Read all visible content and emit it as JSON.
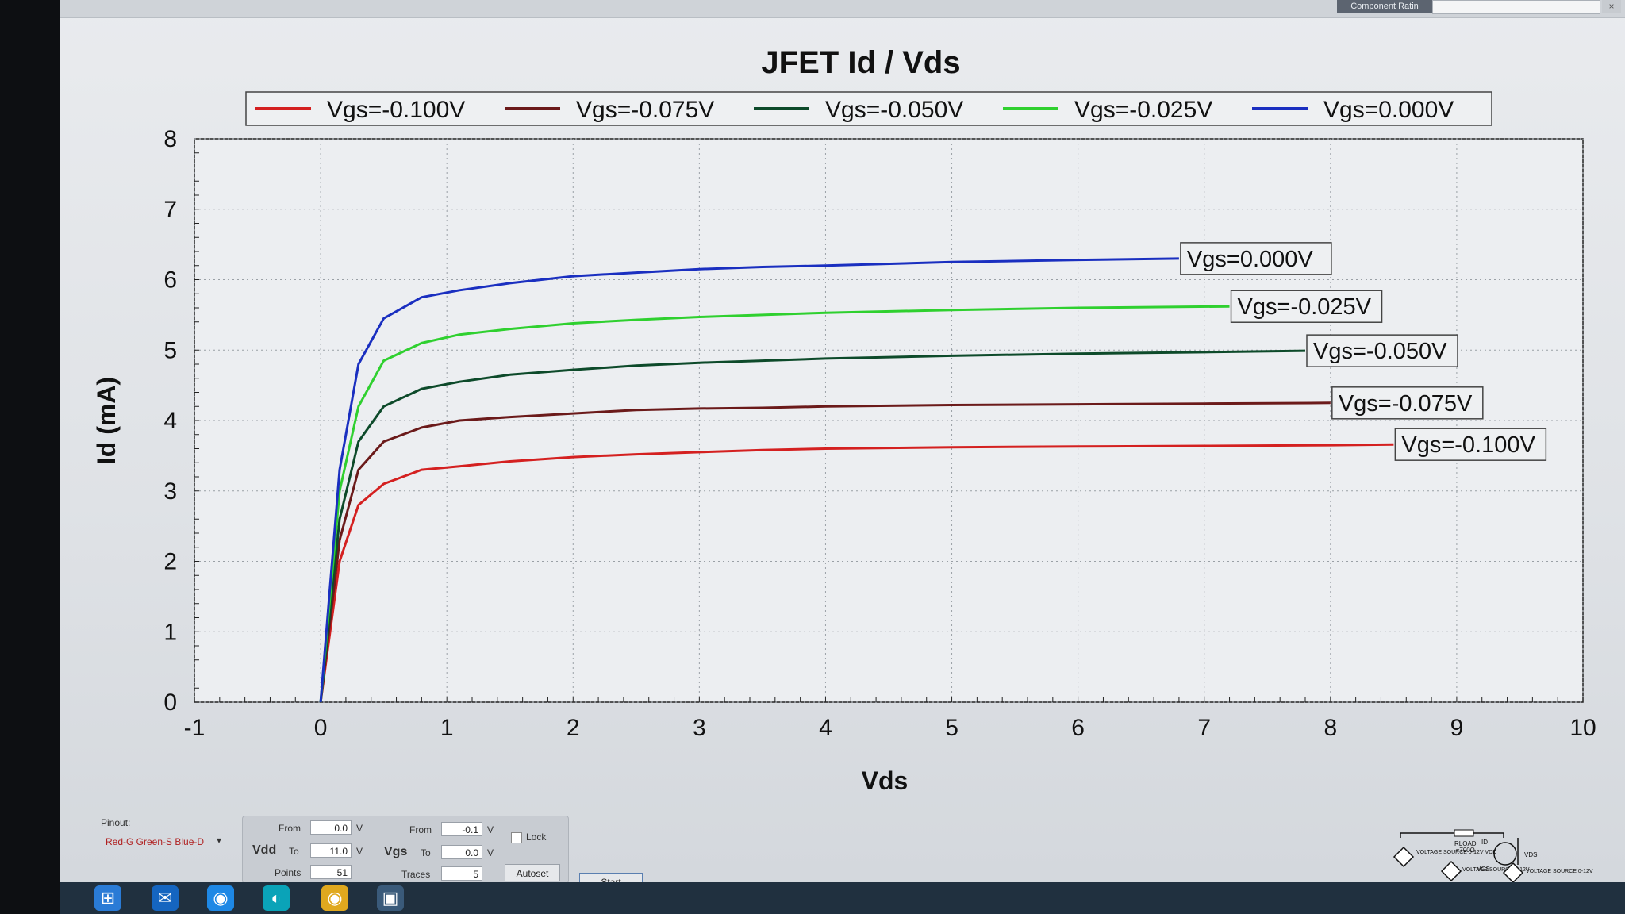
{
  "window": {
    "component_tab": "Component Ratin",
    "close_glyph": "×"
  },
  "chart_data": {
    "type": "line",
    "title": "JFET Id / Vds",
    "xlabel": "Vds",
    "ylabel": "Id (mA)",
    "xlim": [
      -1,
      10
    ],
    "ylim": [
      0,
      8
    ],
    "xticks": [
      -1,
      0,
      1,
      2,
      3,
      4,
      5,
      6,
      7,
      8,
      9,
      10
    ],
    "yticks": [
      0,
      1,
      2,
      3,
      4,
      5,
      6,
      7,
      8
    ],
    "grid": true,
    "legend_position": "top",
    "series": [
      {
        "name": "Vgs=-0.100V",
        "color": "#d42020",
        "x": [
          0,
          0.15,
          0.3,
          0.5,
          0.8,
          1.1,
          1.5,
          2,
          2.5,
          3,
          3.5,
          4,
          5,
          6,
          7,
          8,
          8.5
        ],
        "y": [
          0,
          2.0,
          2.8,
          3.1,
          3.3,
          3.35,
          3.42,
          3.48,
          3.52,
          3.55,
          3.58,
          3.6,
          3.62,
          3.63,
          3.64,
          3.65,
          3.66
        ]
      },
      {
        "name": "Vgs=-0.075V",
        "color": "#6b1a1a",
        "x": [
          0,
          0.15,
          0.3,
          0.5,
          0.8,
          1.1,
          1.5,
          2,
          2.5,
          3,
          3.5,
          4,
          5,
          6,
          7,
          8
        ],
        "y": [
          0,
          2.3,
          3.3,
          3.7,
          3.9,
          4.0,
          4.05,
          4.1,
          4.15,
          4.17,
          4.18,
          4.2,
          4.22,
          4.23,
          4.24,
          4.25
        ]
      },
      {
        "name": "Vgs=-0.050V",
        "color": "#0d4a2a",
        "x": [
          0,
          0.15,
          0.3,
          0.5,
          0.8,
          1.1,
          1.5,
          2,
          2.5,
          3,
          3.5,
          4,
          5,
          6,
          7,
          7.8
        ],
        "y": [
          0,
          2.6,
          3.7,
          4.2,
          4.45,
          4.55,
          4.65,
          4.72,
          4.78,
          4.82,
          4.85,
          4.88,
          4.92,
          4.95,
          4.97,
          4.99
        ]
      },
      {
        "name": "Vgs=-0.025V",
        "color": "#2fd02f",
        "x": [
          0,
          0.15,
          0.3,
          0.5,
          0.8,
          1.1,
          1.5,
          2,
          2.5,
          3,
          3.5,
          4,
          5,
          6,
          7.2
        ],
        "y": [
          0,
          3.0,
          4.2,
          4.85,
          5.1,
          5.22,
          5.3,
          5.38,
          5.43,
          5.47,
          5.5,
          5.53,
          5.57,
          5.6,
          5.62
        ]
      },
      {
        "name": "Vgs=0.000V",
        "color": "#1a2fc0",
        "x": [
          0,
          0.15,
          0.3,
          0.5,
          0.8,
          1.1,
          1.5,
          2,
          2.5,
          3,
          3.5,
          4,
          5,
          6,
          6.8
        ],
        "y": [
          0,
          3.3,
          4.8,
          5.45,
          5.75,
          5.85,
          5.95,
          6.05,
          6.1,
          6.15,
          6.18,
          6.2,
          6.25,
          6.28,
          6.3
        ]
      }
    ],
    "annotations": [
      "Vgs=0.000V",
      "Vgs=-0.025V",
      "Vgs=-0.050V",
      "Vgs=-0.075V",
      "Vgs=-0.100V"
    ]
  },
  "controls": {
    "pinout_label": "Pinout:",
    "pinout_value": "Red-G Green-S Blue-D",
    "vdd_label": "Vdd",
    "vgs_label": "Vgs",
    "from_label": "From",
    "to_label": "To",
    "points_label": "Points",
    "traces_label": "Traces",
    "unit_v": "V",
    "vdd_from": "0.0",
    "vdd_to": "11.0",
    "points": "51",
    "vgs_from": "-0.1",
    "vgs_to": "0.0",
    "traces": "5",
    "lock_label": "Lock",
    "autoset_label": "Autoset",
    "start_label": "Start"
  },
  "circuit": {
    "rload": "RLOAD",
    "rload_value": "≈700Ω",
    "id_label": "ID",
    "vds_label": "VDS",
    "vgs_label": "VGS",
    "vdd_source": "VOLTAGE SOURCE 0-12V VDD",
    "vgs_source_1": "VOLTAGE SOURCE 0-12V",
    "vgs_source_2": "VOLTAGE SOURCE 0-12V"
  },
  "taskbar": {
    "icons": [
      "windows-start-icon",
      "outlook-icon",
      "chrome-dev-icon",
      "edge-icon",
      "chrome-icon",
      "app-icon"
    ]
  }
}
